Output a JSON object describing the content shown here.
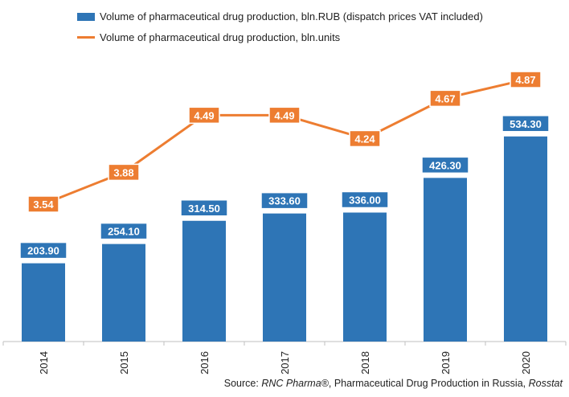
{
  "legend": {
    "bar_label": "Volume of pharmaceutical drug production, bln.RUB (dispatch prices VAT included)",
    "line_label": "Volume of pharmaceutical drug production, bln.units"
  },
  "source": {
    "prefix": "Source: ",
    "org": "RNC Pharma®",
    "middle": ", Pharmaceutical Drug Production in Russia, ",
    "agency": "Rosstat"
  },
  "colors": {
    "bar": "#2E75B6",
    "line": "#ED7D31",
    "axis": "#bfbfbf"
  },
  "chart_data": {
    "type": "bar",
    "categories": [
      "2014",
      "2015",
      "2016",
      "2017",
      "2018",
      "2019",
      "2020"
    ],
    "series": [
      {
        "name": "Volume of pharmaceutical drug production, bln.RUB (dispatch prices VAT included)",
        "type": "bar",
        "values": [
          203.9,
          254.1,
          314.5,
          333.6,
          336.0,
          426.3,
          534.3
        ],
        "labels": [
          "203.90",
          "254.10",
          "314.50",
          "333.60",
          "336.00",
          "426.30",
          "534.30"
        ]
      },
      {
        "name": "Volume of pharmaceutical drug production, bln.units",
        "type": "line",
        "values": [
          3.54,
          3.88,
          4.49,
          4.49,
          4.24,
          4.67,
          4.87
        ],
        "labels": [
          "3.54",
          "3.88",
          "4.49",
          "4.49",
          "4.24",
          "4.67",
          "4.87"
        ]
      }
    ],
    "legend_position": "top-left",
    "grid": false
  }
}
